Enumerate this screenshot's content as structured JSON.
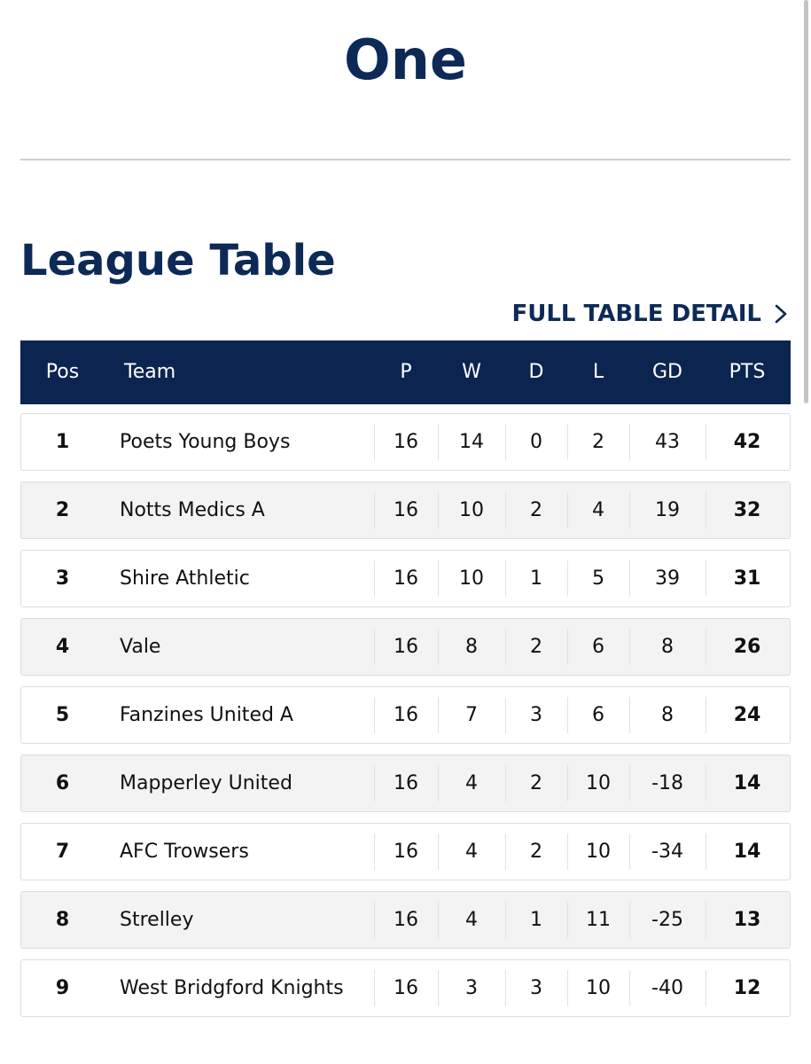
{
  "page": {
    "heading": "One",
    "section_title": "League Table",
    "full_table_link": "FULL TABLE DETAIL"
  },
  "colors": {
    "navy": "#0c2550",
    "row_alt": "#f3f3f3",
    "row_border": "#dedede"
  },
  "icons": {
    "link_chevron": "chevron-right-icon"
  },
  "table": {
    "headers": [
      "Pos",
      "Team",
      "P",
      "W",
      "D",
      "L",
      "GD",
      "PTS"
    ],
    "rows": [
      [
        "1",
        "Poets Young Boys",
        "16",
        "14",
        "0",
        "2",
        "43",
        "42"
      ],
      [
        "2",
        "Notts Medics A",
        "16",
        "10",
        "2",
        "4",
        "19",
        "32"
      ],
      [
        "3",
        "Shire Athletic",
        "16",
        "10",
        "1",
        "5",
        "39",
        "31"
      ],
      [
        "4",
        "Vale",
        "16",
        "8",
        "2",
        "6",
        "8",
        "26"
      ],
      [
        "5",
        "Fanzines United A",
        "16",
        "7",
        "3",
        "6",
        "8",
        "24"
      ],
      [
        "6",
        "Mapperley United",
        "16",
        "4",
        "2",
        "10",
        "-18",
        "14"
      ],
      [
        "7",
        "AFC Trowsers",
        "16",
        "4",
        "2",
        "10",
        "-34",
        "14"
      ],
      [
        "8",
        "Strelley",
        "16",
        "4",
        "1",
        "11",
        "-25",
        "13"
      ],
      [
        "9",
        "West Bridgford Knights",
        "16",
        "3",
        "3",
        "10",
        "-40",
        "12"
      ]
    ]
  }
}
